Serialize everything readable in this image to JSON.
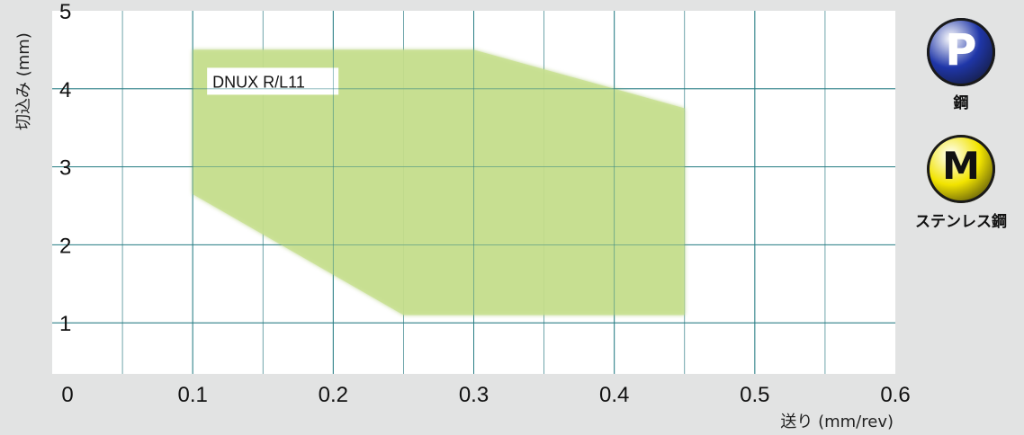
{
  "chart_data": {
    "type": "area",
    "xlabel": "送り (mm/rev)",
    "ylabel": "切込み (mm)",
    "xlim": [
      0,
      0.6
    ],
    "ylim": [
      0,
      5
    ],
    "x_ticks": [
      "0.1",
      "0.2",
      "0.3",
      "0.4",
      "0.5",
      "0.6"
    ],
    "y_ticks": [
      "1",
      "2",
      "3",
      "4",
      "5"
    ],
    "origin_label": "0",
    "grid": true,
    "series": [
      {
        "name": "DNUX R/L11",
        "color": "#c8e090",
        "points": [
          {
            "x": 0.1,
            "y": 2.65
          },
          {
            "x": 0.1,
            "y": 4.5
          },
          {
            "x": 0.3,
            "y": 4.5
          },
          {
            "x": 0.45,
            "y": 3.75
          },
          {
            "x": 0.45,
            "y": 1.1
          },
          {
            "x": 0.25,
            "y": 1.1
          }
        ]
      }
    ]
  },
  "materials": [
    {
      "letter": "P",
      "label": "鋼",
      "color": "#1f36a8",
      "text_color": "#ffffff"
    },
    {
      "letter": "M",
      "label": "ステンレス鋼",
      "color": "#f2e400",
      "text_color": "#111111"
    }
  ]
}
